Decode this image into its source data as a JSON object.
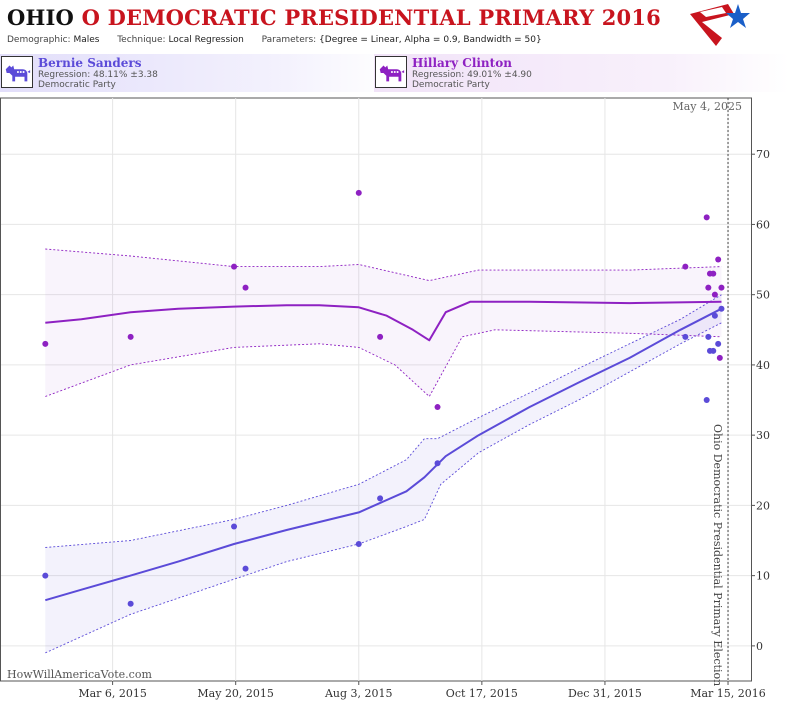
{
  "header": {
    "title_state": "OHIO",
    "title_rest": "O DEMOCRATIC PRESIDENTIAL PRIMARY 2016",
    "demographic_label": "Demographic:",
    "demographic_value": "Males",
    "technique_label": "Technique:",
    "technique_value": "Local Regression",
    "parameters_label": "Parameters:",
    "parameters_value": "{Degree = Linear, Alpha = 0.9, Bandwidth = 50}",
    "logo_icon": "star-stripes-logo-icon",
    "logo_colors": [
      "#c8141e",
      "#1a5fc8"
    ]
  },
  "candidates": [
    {
      "name": "Bernie Sanders",
      "regression": "Regression: 48.11% ±3.38",
      "party": "Democratic Party",
      "color": "#5b4bd8",
      "icon": "donkey-icon"
    },
    {
      "name": "Hillary Clinton",
      "regression": "Regression: 49.01% ±4.90",
      "party": "Democratic Party",
      "color": "#8e21c2",
      "icon": "donkey-icon"
    }
  ],
  "chart_data": {
    "type": "line",
    "title": "OHIO O DEMOCRATIC PRESIDENTIAL PRIMARY 2016",
    "xlabel": "",
    "ylabel": "",
    "x_axis": "date",
    "xlim": [
      "2014-12-28",
      "2016-03-29"
    ],
    "ylim": [
      -5,
      78
    ],
    "y_ticks": [
      0,
      10,
      20,
      30,
      40,
      50,
      60,
      70
    ],
    "x_ticks": [
      {
        "date": "2015-03-06",
        "label": "Mar 6, 2015"
      },
      {
        "date": "2015-05-20",
        "label": "May 20, 2015"
      },
      {
        "date": "2015-08-03",
        "label": "Aug 3, 2015"
      },
      {
        "date": "2015-10-17",
        "label": "Oct 17, 2015"
      },
      {
        "date": "2015-12-31",
        "label": "Dec 31, 2015"
      },
      {
        "date": "2016-03-15",
        "label": "Mar 15, 2016"
      }
    ],
    "grid": true,
    "election_marker": {
      "date": "2016-03-15",
      "label": "Ohio Democratic Presidential Primary Election"
    },
    "corner_date_label": "May 4, 2025",
    "watermark": "HowWillAmericaVote.com",
    "series": [
      {
        "name": "Bernie Sanders",
        "color": "#5b4bd8",
        "points": [
          [
            "2015-01-24",
            10
          ],
          [
            "2015-03-17",
            6
          ],
          [
            "2015-05-19",
            17
          ],
          [
            "2015-05-26",
            11
          ],
          [
            "2015-08-03",
            14.5
          ],
          [
            "2015-08-16",
            21
          ],
          [
            "2015-09-20",
            26
          ],
          [
            "2016-02-18",
            44
          ],
          [
            "2016-03-02",
            35
          ],
          [
            "2016-03-03",
            44
          ],
          [
            "2016-03-04",
            42
          ],
          [
            "2016-03-06",
            42
          ],
          [
            "2016-03-07",
            47
          ],
          [
            "2016-03-09",
            43
          ],
          [
            "2016-03-11",
            48
          ]
        ],
        "fit": [
          [
            "2015-01-24",
            6.5
          ],
          [
            "2015-02-15",
            8
          ],
          [
            "2015-03-17",
            10
          ],
          [
            "2015-04-15",
            12
          ],
          [
            "2015-05-19",
            14.5
          ],
          [
            "2015-06-20",
            16.5
          ],
          [
            "2015-08-03",
            19
          ],
          [
            "2015-09-01",
            22
          ],
          [
            "2015-09-12",
            24
          ],
          [
            "2015-09-25",
            27
          ],
          [
            "2015-10-15",
            30
          ],
          [
            "2015-11-15",
            34
          ],
          [
            "2015-12-15",
            37.5
          ],
          [
            "2016-01-15",
            41
          ],
          [
            "2016-02-15",
            45
          ],
          [
            "2016-03-11",
            48
          ]
        ],
        "band_upper": [
          [
            "2015-01-24",
            14
          ],
          [
            "2015-03-17",
            15
          ],
          [
            "2015-05-19",
            18
          ],
          [
            "2015-06-20",
            20
          ],
          [
            "2015-08-03",
            23
          ],
          [
            "2015-09-01",
            26.5
          ],
          [
            "2015-09-12",
            29.5
          ],
          [
            "2015-09-20",
            29.5
          ],
          [
            "2015-10-15",
            32.5
          ],
          [
            "2015-11-15",
            36
          ],
          [
            "2015-12-15",
            39.5
          ],
          [
            "2016-01-15",
            43
          ],
          [
            "2016-02-15",
            46.5
          ],
          [
            "2016-03-11",
            50
          ]
        ],
        "band_lower": [
          [
            "2015-01-24",
            -1
          ],
          [
            "2015-03-17",
            4.5
          ],
          [
            "2015-05-19",
            9.5
          ],
          [
            "2015-06-20",
            12
          ],
          [
            "2015-08-03",
            14.5
          ],
          [
            "2015-09-01",
            17
          ],
          [
            "2015-09-12",
            18
          ],
          [
            "2015-09-22",
            23
          ],
          [
            "2015-10-15",
            27.5
          ],
          [
            "2015-11-15",
            31.5
          ],
          [
            "2015-12-15",
            35
          ],
          [
            "2016-01-15",
            39
          ],
          [
            "2016-02-15",
            43
          ],
          [
            "2016-03-11",
            46
          ]
        ]
      },
      {
        "name": "Hillary Clinton",
        "color": "#8e21c2",
        "points": [
          [
            "2015-01-24",
            43
          ],
          [
            "2015-03-17",
            44
          ],
          [
            "2015-05-19",
            54
          ],
          [
            "2015-05-26",
            51
          ],
          [
            "2015-08-03",
            64.5
          ],
          [
            "2015-08-16",
            44
          ],
          [
            "2015-09-20",
            34
          ],
          [
            "2016-02-18",
            54
          ],
          [
            "2016-03-02",
            61
          ],
          [
            "2016-03-03",
            51
          ],
          [
            "2016-03-04",
            53
          ],
          [
            "2016-03-06",
            53
          ],
          [
            "2016-03-07",
            50
          ],
          [
            "2016-03-09",
            55
          ],
          [
            "2016-03-10",
            41
          ],
          [
            "2016-03-11",
            51
          ]
        ],
        "fit": [
          [
            "2015-01-24",
            46
          ],
          [
            "2015-02-15",
            46.5
          ],
          [
            "2015-03-17",
            47.5
          ],
          [
            "2015-04-15",
            48
          ],
          [
            "2015-05-19",
            48.3
          ],
          [
            "2015-06-20",
            48.5
          ],
          [
            "2015-07-10",
            48.5
          ],
          [
            "2015-08-03",
            48.2
          ],
          [
            "2015-08-20",
            47
          ],
          [
            "2015-09-05",
            45
          ],
          [
            "2015-09-15",
            43.5
          ],
          [
            "2015-09-25",
            47.5
          ],
          [
            "2015-10-10",
            49
          ],
          [
            "2015-11-15",
            49
          ],
          [
            "2016-01-15",
            48.8
          ],
          [
            "2016-03-11",
            49
          ]
        ],
        "band_upper": [
          [
            "2015-01-24",
            56.5
          ],
          [
            "2015-03-17",
            55.5
          ],
          [
            "2015-05-19",
            54
          ],
          [
            "2015-07-10",
            54
          ],
          [
            "2015-08-03",
            54.3
          ],
          [
            "2015-09-15",
            52
          ],
          [
            "2015-10-15",
            53.5
          ],
          [
            "2016-01-15",
            53.5
          ],
          [
            "2016-03-11",
            54
          ]
        ],
        "band_lower": [
          [
            "2015-01-24",
            35.5
          ],
          [
            "2015-03-17",
            40
          ],
          [
            "2015-05-19",
            42.5
          ],
          [
            "2015-07-10",
            43
          ],
          [
            "2015-08-03",
            42.5
          ],
          [
            "2015-08-25",
            40
          ],
          [
            "2015-09-15",
            35.5
          ],
          [
            "2015-10-05",
            44
          ],
          [
            "2015-10-25",
            45
          ],
          [
            "2016-01-15",
            44.5
          ],
          [
            "2016-03-11",
            44
          ]
        ]
      }
    ]
  }
}
